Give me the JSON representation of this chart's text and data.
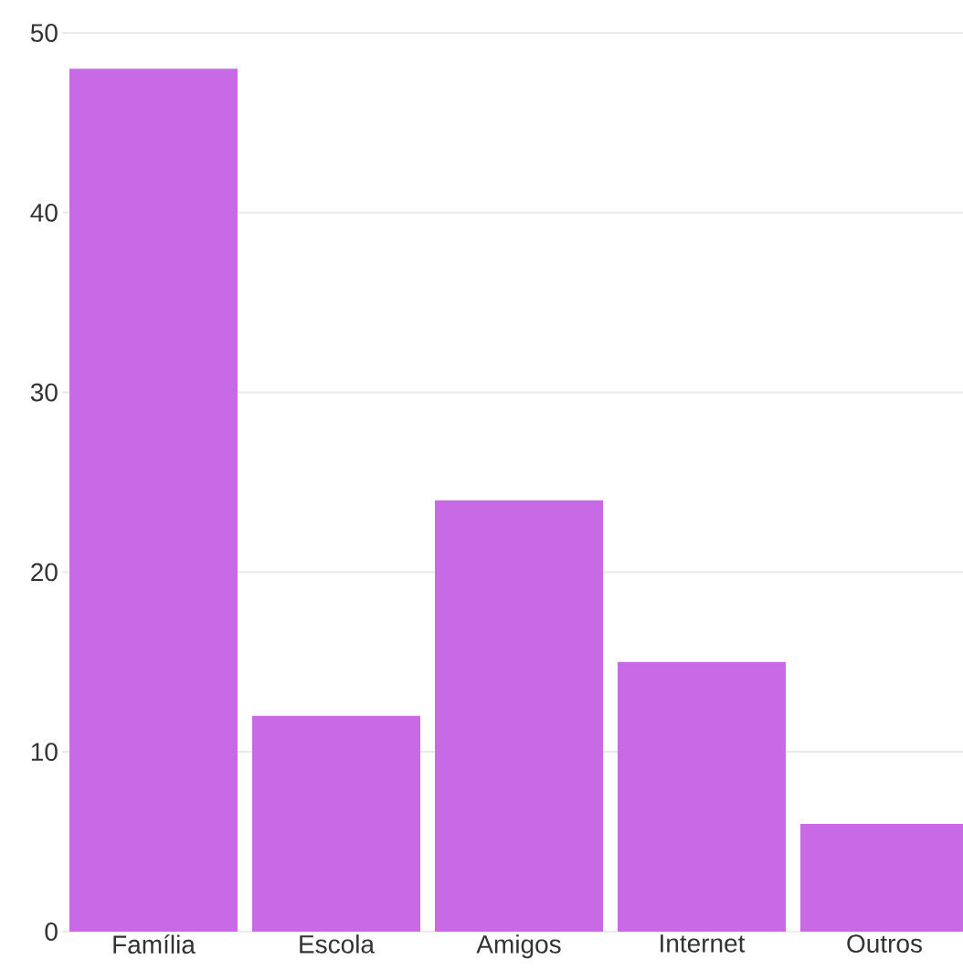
{
  "chart_data": {
    "type": "bar",
    "categories": [
      "Família",
      "Escola",
      "Amigos",
      "Internet",
      "Outros"
    ],
    "values": [
      48,
      12,
      24,
      15,
      6
    ],
    "color": "#c86ae6",
    "ylim": [
      0,
      50
    ],
    "yticks": [
      0,
      10,
      20,
      30,
      40,
      50
    ],
    "grid": "y"
  }
}
